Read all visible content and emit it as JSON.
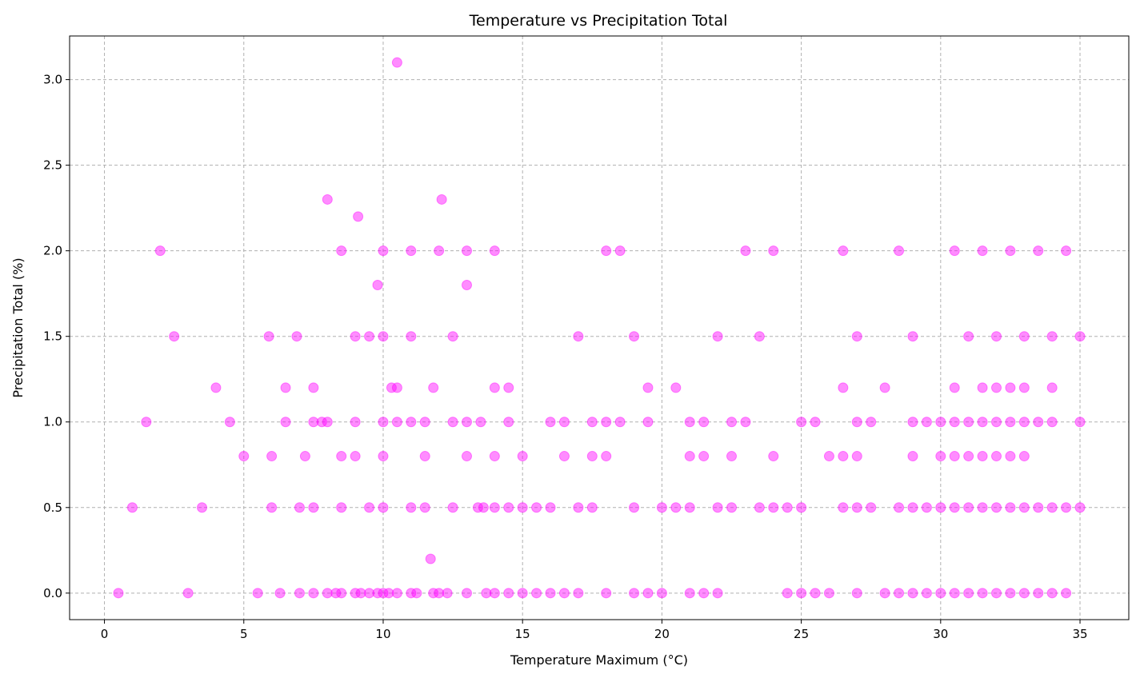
{
  "chart_data": {
    "type": "scatter",
    "title": "Temperature vs Precipitation Total",
    "xlabel": "Temperature Maximum (°C)",
    "ylabel": "Precipitation Total (%)",
    "xlim": [
      -1.25,
      36.75
    ],
    "ylim": [
      -0.155,
      3.255
    ],
    "xticks": [
      0,
      5,
      10,
      15,
      20,
      25,
      30,
      35
    ],
    "yticks": [
      0.0,
      0.5,
      1.0,
      1.5,
      2.0,
      2.5,
      3.0
    ],
    "xtick_labels": [
      "0",
      "5",
      "10",
      "15",
      "20",
      "25",
      "30",
      "35"
    ],
    "ytick_labels": [
      "0.0",
      "0.5",
      "1.0",
      "1.5",
      "2.0",
      "2.5",
      "3.0"
    ],
    "grid": true,
    "marker_color": "#ff00ff",
    "marker_opacity": 0.45,
    "points": [
      [
        0.5,
        0.0
      ],
      [
        3.0,
        0.0
      ],
      [
        5.5,
        0.0
      ],
      [
        6.3,
        0.0
      ],
      [
        7.0,
        0.0
      ],
      [
        7.5,
        0.0
      ],
      [
        8.0,
        0.0
      ],
      [
        8.3,
        0.0
      ],
      [
        8.5,
        0.0
      ],
      [
        9.0,
        0.0
      ],
      [
        9.2,
        0.0
      ],
      [
        9.5,
        0.0
      ],
      [
        9.8,
        0.0
      ],
      [
        10.0,
        0.0
      ],
      [
        10.2,
        0.0
      ],
      [
        10.5,
        0.0
      ],
      [
        11.0,
        0.0
      ],
      [
        11.2,
        0.0
      ],
      [
        11.8,
        0.0
      ],
      [
        12.0,
        0.0
      ],
      [
        12.3,
        0.0
      ],
      [
        13.0,
        0.0
      ],
      [
        13.7,
        0.0
      ],
      [
        14.0,
        0.0
      ],
      [
        14.5,
        0.0
      ],
      [
        15.0,
        0.0
      ],
      [
        15.5,
        0.0
      ],
      [
        16.0,
        0.0
      ],
      [
        16.5,
        0.0
      ],
      [
        17.0,
        0.0
      ],
      [
        18.0,
        0.0
      ],
      [
        19.0,
        0.0
      ],
      [
        19.5,
        0.0
      ],
      [
        20.0,
        0.0
      ],
      [
        21.0,
        0.0
      ],
      [
        21.5,
        0.0
      ],
      [
        22.0,
        0.0
      ],
      [
        24.5,
        0.0
      ],
      [
        25.0,
        0.0
      ],
      [
        25.5,
        0.0
      ],
      [
        26.0,
        0.0
      ],
      [
        27.0,
        0.0
      ],
      [
        28.0,
        0.0
      ],
      [
        28.5,
        0.0
      ],
      [
        29.0,
        0.0
      ],
      [
        29.5,
        0.0
      ],
      [
        30.0,
        0.0
      ],
      [
        30.5,
        0.0
      ],
      [
        31.0,
        0.0
      ],
      [
        31.5,
        0.0
      ],
      [
        32.0,
        0.0
      ],
      [
        32.5,
        0.0
      ],
      [
        33.0,
        0.0
      ],
      [
        33.5,
        0.0
      ],
      [
        34.0,
        0.0
      ],
      [
        34.5,
        0.0
      ],
      [
        11.7,
        0.2
      ],
      [
        1.0,
        0.5
      ],
      [
        3.5,
        0.5
      ],
      [
        6.0,
        0.5
      ],
      [
        7.0,
        0.5
      ],
      [
        7.5,
        0.5
      ],
      [
        8.5,
        0.5
      ],
      [
        9.5,
        0.5
      ],
      [
        10.0,
        0.5
      ],
      [
        11.0,
        0.5
      ],
      [
        11.5,
        0.5
      ],
      [
        12.5,
        0.5
      ],
      [
        13.4,
        0.5
      ],
      [
        13.6,
        0.5
      ],
      [
        14.0,
        0.5
      ],
      [
        14.5,
        0.5
      ],
      [
        15.0,
        0.5
      ],
      [
        15.5,
        0.5
      ],
      [
        16.0,
        0.5
      ],
      [
        17.0,
        0.5
      ],
      [
        17.5,
        0.5
      ],
      [
        19.0,
        0.5
      ],
      [
        20.0,
        0.5
      ],
      [
        20.5,
        0.5
      ],
      [
        21.0,
        0.5
      ],
      [
        22.0,
        0.5
      ],
      [
        22.5,
        0.5
      ],
      [
        23.5,
        0.5
      ],
      [
        24.0,
        0.5
      ],
      [
        24.5,
        0.5
      ],
      [
        25.0,
        0.5
      ],
      [
        26.5,
        0.5
      ],
      [
        27.0,
        0.5
      ],
      [
        27.5,
        0.5
      ],
      [
        28.5,
        0.5
      ],
      [
        29.0,
        0.5
      ],
      [
        29.5,
        0.5
      ],
      [
        30.0,
        0.5
      ],
      [
        30.5,
        0.5
      ],
      [
        31.0,
        0.5
      ],
      [
        31.5,
        0.5
      ],
      [
        32.0,
        0.5
      ],
      [
        32.5,
        0.5
      ],
      [
        33.0,
        0.5
      ],
      [
        33.5,
        0.5
      ],
      [
        34.0,
        0.5
      ],
      [
        34.5,
        0.5
      ],
      [
        35.0,
        0.5
      ],
      [
        5.0,
        0.8
      ],
      [
        6.0,
        0.8
      ],
      [
        7.2,
        0.8
      ],
      [
        8.5,
        0.8
      ],
      [
        9.0,
        0.8
      ],
      [
        10.0,
        0.8
      ],
      [
        11.5,
        0.8
      ],
      [
        13.0,
        0.8
      ],
      [
        14.0,
        0.8
      ],
      [
        15.0,
        0.8
      ],
      [
        16.5,
        0.8
      ],
      [
        17.5,
        0.8
      ],
      [
        18.0,
        0.8
      ],
      [
        21.0,
        0.8
      ],
      [
        21.5,
        0.8
      ],
      [
        22.5,
        0.8
      ],
      [
        24.0,
        0.8
      ],
      [
        26.0,
        0.8
      ],
      [
        26.5,
        0.8
      ],
      [
        27.0,
        0.8
      ],
      [
        29.0,
        0.8
      ],
      [
        30.0,
        0.8
      ],
      [
        30.5,
        0.8
      ],
      [
        31.0,
        0.8
      ],
      [
        31.5,
        0.8
      ],
      [
        32.0,
        0.8
      ],
      [
        32.5,
        0.8
      ],
      [
        33.0,
        0.8
      ],
      [
        1.5,
        1.0
      ],
      [
        4.5,
        1.0
      ],
      [
        6.5,
        1.0
      ],
      [
        7.5,
        1.0
      ],
      [
        7.8,
        1.0
      ],
      [
        8.0,
        1.0
      ],
      [
        9.0,
        1.0
      ],
      [
        10.0,
        1.0
      ],
      [
        10.5,
        1.0
      ],
      [
        11.0,
        1.0
      ],
      [
        11.5,
        1.0
      ],
      [
        12.5,
        1.0
      ],
      [
        13.0,
        1.0
      ],
      [
        13.5,
        1.0
      ],
      [
        14.5,
        1.0
      ],
      [
        16.0,
        1.0
      ],
      [
        16.5,
        1.0
      ],
      [
        17.5,
        1.0
      ],
      [
        18.0,
        1.0
      ],
      [
        18.5,
        1.0
      ],
      [
        19.5,
        1.0
      ],
      [
        21.0,
        1.0
      ],
      [
        21.5,
        1.0
      ],
      [
        22.5,
        1.0
      ],
      [
        23.0,
        1.0
      ],
      [
        25.0,
        1.0
      ],
      [
        25.5,
        1.0
      ],
      [
        27.0,
        1.0
      ],
      [
        27.5,
        1.0
      ],
      [
        29.0,
        1.0
      ],
      [
        29.5,
        1.0
      ],
      [
        30.0,
        1.0
      ],
      [
        30.5,
        1.0
      ],
      [
        31.0,
        1.0
      ],
      [
        31.5,
        1.0
      ],
      [
        32.0,
        1.0
      ],
      [
        32.5,
        1.0
      ],
      [
        33.0,
        1.0
      ],
      [
        33.5,
        1.0
      ],
      [
        34.0,
        1.0
      ],
      [
        35.0,
        1.0
      ],
      [
        4.0,
        1.2
      ],
      [
        6.5,
        1.2
      ],
      [
        7.5,
        1.2
      ],
      [
        10.3,
        1.2
      ],
      [
        10.5,
        1.2
      ],
      [
        11.8,
        1.2
      ],
      [
        14.0,
        1.2
      ],
      [
        14.5,
        1.2
      ],
      [
        19.5,
        1.2
      ],
      [
        20.5,
        1.2
      ],
      [
        26.5,
        1.2
      ],
      [
        28.0,
        1.2
      ],
      [
        30.5,
        1.2
      ],
      [
        31.5,
        1.2
      ],
      [
        32.0,
        1.2
      ],
      [
        32.5,
        1.2
      ],
      [
        33.0,
        1.2
      ],
      [
        34.0,
        1.2
      ],
      [
        2.5,
        1.5
      ],
      [
        5.9,
        1.5
      ],
      [
        6.9,
        1.5
      ],
      [
        9.0,
        1.5
      ],
      [
        9.5,
        1.5
      ],
      [
        10.0,
        1.5
      ],
      [
        11.0,
        1.5
      ],
      [
        12.5,
        1.5
      ],
      [
        17.0,
        1.5
      ],
      [
        19.0,
        1.5
      ],
      [
        22.0,
        1.5
      ],
      [
        23.5,
        1.5
      ],
      [
        27.0,
        1.5
      ],
      [
        29.0,
        1.5
      ],
      [
        31.0,
        1.5
      ],
      [
        32.0,
        1.5
      ],
      [
        33.0,
        1.5
      ],
      [
        34.0,
        1.5
      ],
      [
        35.0,
        1.5
      ],
      [
        9.8,
        1.8
      ],
      [
        13.0,
        1.8
      ],
      [
        2.0,
        2.0
      ],
      [
        8.5,
        2.0
      ],
      [
        10.0,
        2.0
      ],
      [
        11.0,
        2.0
      ],
      [
        12.0,
        2.0
      ],
      [
        13.0,
        2.0
      ],
      [
        14.0,
        2.0
      ],
      [
        18.0,
        2.0
      ],
      [
        18.5,
        2.0
      ],
      [
        23.0,
        2.0
      ],
      [
        24.0,
        2.0
      ],
      [
        26.5,
        2.0
      ],
      [
        28.5,
        2.0
      ],
      [
        30.5,
        2.0
      ],
      [
        31.5,
        2.0
      ],
      [
        32.5,
        2.0
      ],
      [
        33.5,
        2.0
      ],
      [
        34.5,
        2.0
      ],
      [
        9.1,
        2.2
      ],
      [
        8.0,
        2.3
      ],
      [
        12.1,
        2.3
      ],
      [
        10.5,
        3.1
      ]
    ]
  }
}
